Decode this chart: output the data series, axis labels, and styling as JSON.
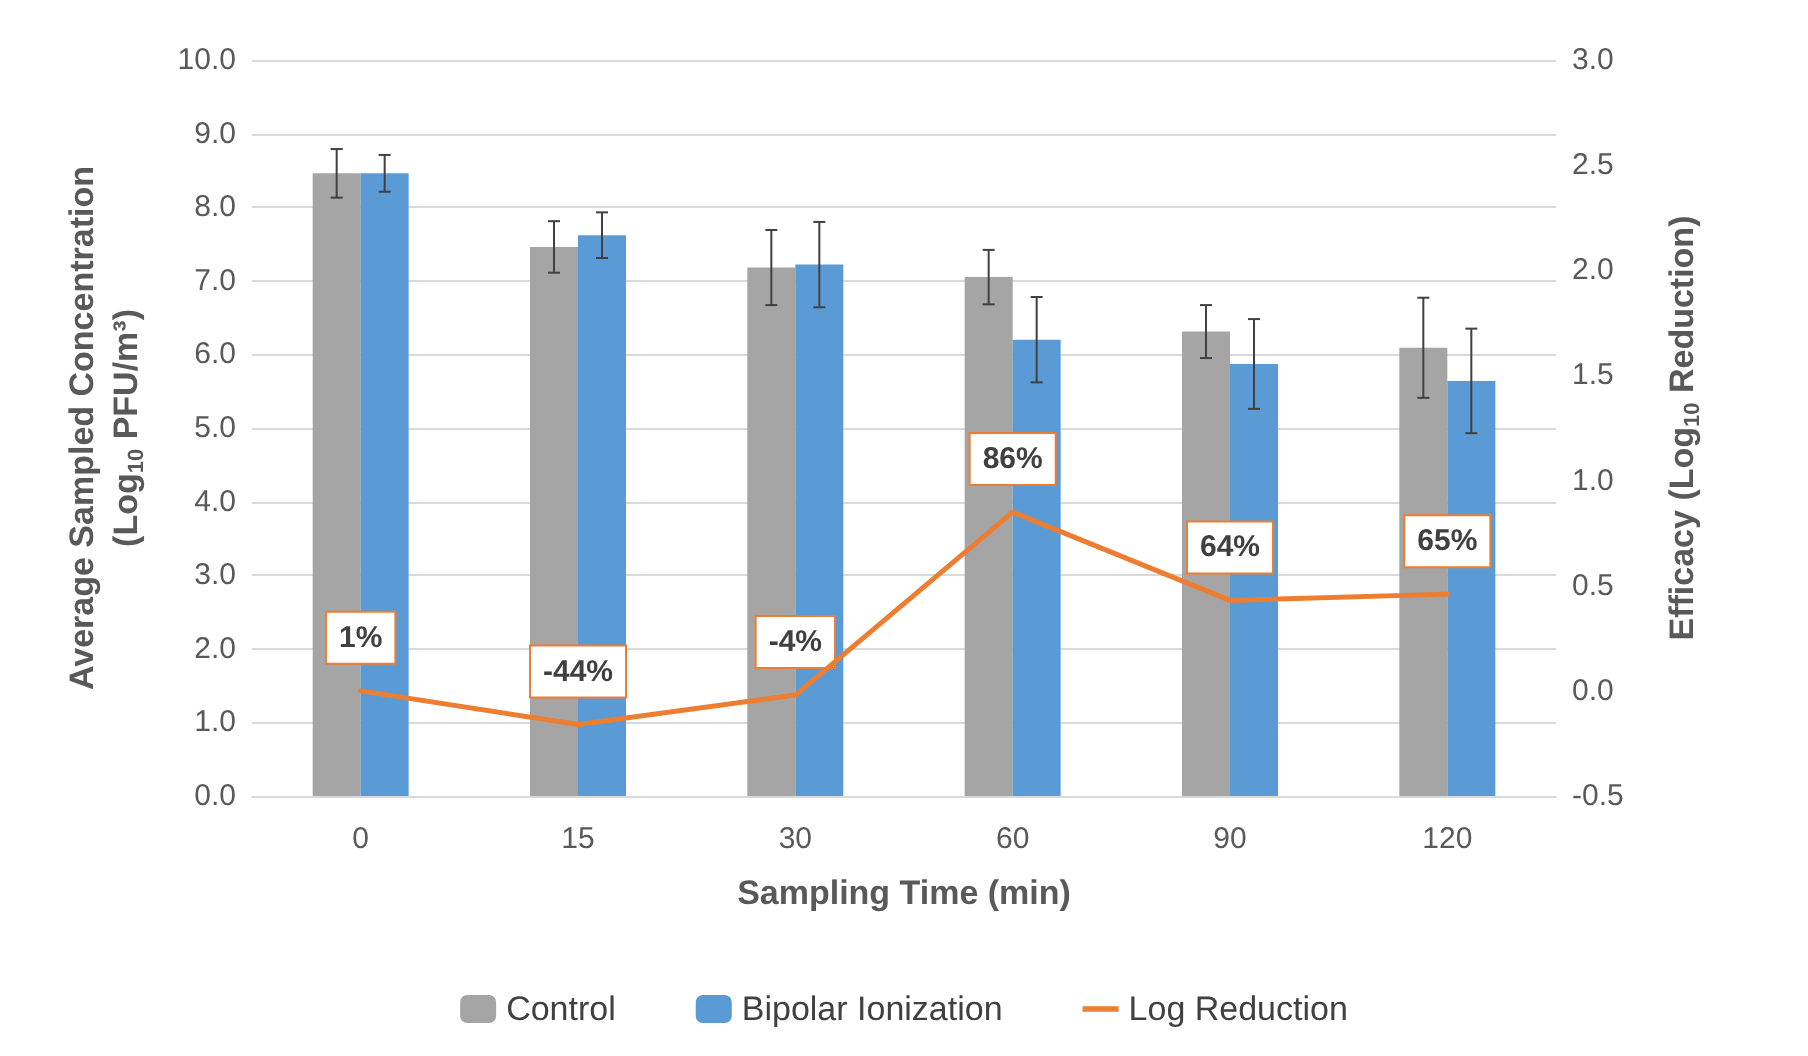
{
  "chart_data": {
    "type": "bar",
    "xlabel": "Sampling Time (min)",
    "ylabel": "Average Sampled Concentration\n(Log$_{10}$ PFU/m³)",
    "y2label": "Efficacy (Log$_{10}$ Reduction)",
    "categories": [
      "0",
      "15",
      "30",
      "60",
      "90",
      "120"
    ],
    "series": [
      {
        "name": "Control",
        "color": "#a5a5a5",
        "values": [
          8.46,
          7.46,
          7.18,
          7.05,
          6.31,
          6.09
        ],
        "errors": [
          0.33,
          0.35,
          0.51,
          0.37,
          0.36,
          0.68
        ]
      },
      {
        "name": "Bipolar Ionization",
        "color": "#5b9bd5",
        "values": [
          8.46,
          7.62,
          7.22,
          6.2,
          5.87,
          5.64
        ],
        "errors": [
          0.25,
          0.31,
          0.58,
          0.58,
          0.61,
          0.71
        ]
      },
      {
        "name": "Log Reduction",
        "type": "line",
        "axis": "y2",
        "color": "#ed7d31",
        "values": [
          0.0,
          -0.16,
          -0.02,
          0.85,
          0.43,
          0.46
        ],
        "marker": "none",
        "line_style": "solid"
      }
    ],
    "annotations": [
      "1%",
      "-44%",
      "-4%",
      "86%",
      "64%",
      "65%"
    ],
    "ylim": [
      0,
      10
    ],
    "yticks": [
      {
        "value": 0,
        "label": "0.0"
      },
      {
        "value": 1,
        "label": "1.0"
      },
      {
        "value": 2,
        "label": "2.0"
      },
      {
        "value": 3,
        "label": "3.0"
      },
      {
        "value": 4,
        "label": "4.0"
      },
      {
        "value": 5,
        "label": "5.0"
      },
      {
        "value": 6,
        "label": "6.0"
      },
      {
        "value": 7,
        "label": "7.0"
      },
      {
        "value": 8,
        "label": "8.0"
      },
      {
        "value": 9,
        "label": "9.0"
      },
      {
        "value": 10,
        "label": "10.0"
      }
    ],
    "y2lim": [
      -0.5,
      3
    ],
    "y2ticks": [
      {
        "value": -0.5,
        "label": "-0.5"
      },
      {
        "value": 0,
        "label": "0.0"
      },
      {
        "value": 0.5,
        "label": "0.5"
      },
      {
        "value": 1,
        "label": "1.0"
      },
      {
        "value": 1.5,
        "label": "1.5"
      },
      {
        "value": 2,
        "label": "2.0"
      },
      {
        "value": 2.5,
        "label": "2.5"
      },
      {
        "value": 3,
        "label": "3.0"
      }
    ],
    "grid": "y",
    "legend": "bottom"
  }
}
